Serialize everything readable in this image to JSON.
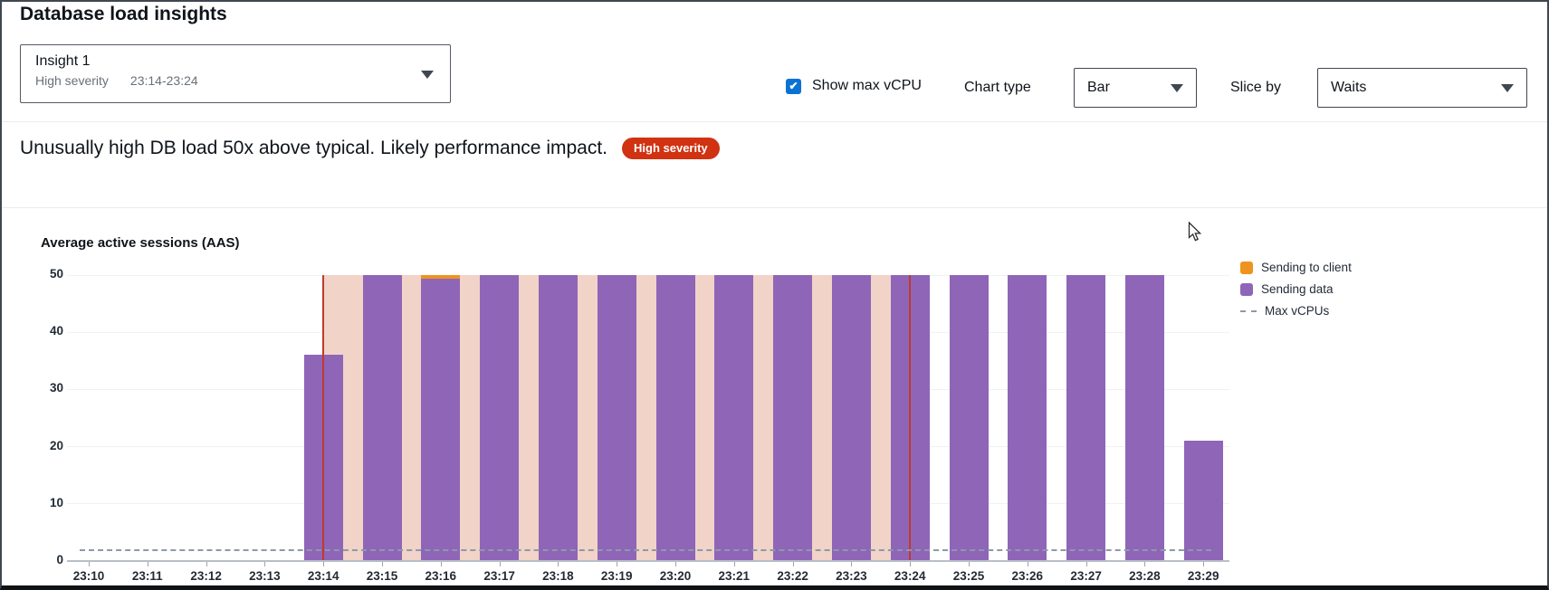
{
  "window": {
    "title": "Database load insights"
  },
  "insight_dropdown": {
    "label": "Insight 1",
    "severity": "High severity",
    "time_range": "23:14-23:24"
  },
  "controls": {
    "show_max_vcpu": {
      "label": "Show max vCPU",
      "checked": true
    },
    "chart_type": {
      "label": "Chart type",
      "value": "Bar"
    },
    "slice_by": {
      "label": "Slice by",
      "value": "Waits"
    }
  },
  "alert": {
    "message": "Unusually high DB load 50x above typical. Likely performance impact.",
    "severity_badge": "High severity"
  },
  "colors": {
    "accent_blue": "#0972d3",
    "severity_red": "#d13212",
    "purple": "#8f65b8",
    "orange": "#ef931f",
    "highlight_pink": "#f1d3c8",
    "highlight_edge_red": "#c03a2b",
    "max_vcpu_dash_gray": "#8d99a8"
  },
  "chart_data": {
    "type": "bar",
    "stacked": true,
    "title": "Average active sessions (AAS)",
    "x": [
      "23:10",
      "23:11",
      "23:12",
      "23:13",
      "23:14",
      "23:15",
      "23:16",
      "23:17",
      "23:18",
      "23:19",
      "23:20",
      "23:21",
      "23:22",
      "23:23",
      "23:24",
      "23:25",
      "23:26",
      "23:27",
      "23:28",
      "23:29"
    ],
    "series": [
      {
        "name": "Sending to client",
        "color": "#ef931f",
        "values": [
          0,
          0,
          0,
          0,
          0,
          0,
          0.7,
          0,
          0,
          0,
          0,
          0,
          0,
          0,
          0,
          0,
          0,
          0,
          0,
          0
        ]
      },
      {
        "name": "Sending data",
        "color": "#8f65b8",
        "values": [
          0,
          0,
          0,
          0,
          36,
          50,
          49.3,
          50,
          50,
          50,
          50,
          50,
          50,
          50,
          50,
          50,
          50,
          50,
          50,
          21
        ]
      }
    ],
    "reference_line": {
      "name": "Max vCPUs",
      "value": 2,
      "style": "dashed",
      "color": "#8d99a8"
    },
    "highlight_region": {
      "from": "23:14",
      "to": "23:24",
      "color": "#f1d3c8",
      "edge_color": "#c03a2b"
    },
    "ylim": [
      0,
      50
    ],
    "yticks": [
      0,
      10,
      20,
      30,
      40,
      50
    ],
    "grid": true,
    "legend_position": "right",
    "legend": [
      "Sending to client",
      "Sending data",
      "Max vCPUs"
    ]
  }
}
